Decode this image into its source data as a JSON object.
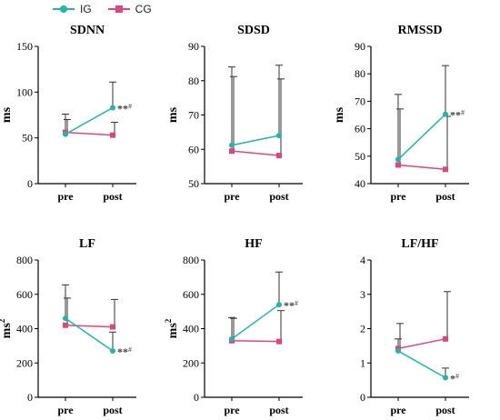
{
  "legend": {
    "ig": {
      "label": "IG",
      "color": "#1fb7a6",
      "marker": "circle"
    },
    "cg": {
      "label": "CG",
      "color": "#e0457b",
      "marker": "square"
    }
  },
  "chart_data": [
    {
      "type": "line",
      "title": "SDNN",
      "ylabel": "ms",
      "categories": [
        "pre",
        "post"
      ],
      "ylim": [
        0,
        150
      ],
      "yticks": [
        0,
        50,
        100,
        150
      ],
      "series": [
        {
          "name": "IG",
          "values": [
            54,
            83
          ],
          "error_upper": [
            76,
            111
          ]
        },
        {
          "name": "CG",
          "values": [
            56,
            53
          ],
          "error_upper": [
            70,
            67
          ]
        }
      ],
      "annotation": "**#"
    },
    {
      "type": "line",
      "title": "SDSD",
      "ylabel": "ms",
      "categories": [
        "pre",
        "post"
      ],
      "ylim": [
        50,
        90
      ],
      "yticks": [
        50,
        60,
        70,
        80,
        90
      ],
      "series": [
        {
          "name": "IG",
          "values": [
            61.2,
            64
          ],
          "error_upper": [
            84,
            84.5
          ]
        },
        {
          "name": "CG",
          "values": [
            59.5,
            58.2
          ],
          "error_upper": [
            81.2,
            80.5
          ]
        }
      ],
      "annotation": ""
    },
    {
      "type": "line",
      "title": "RMSSD",
      "ylabel": "ms",
      "categories": [
        "pre",
        "post"
      ],
      "ylim": [
        40,
        90
      ],
      "yticks": [
        40,
        50,
        60,
        70,
        80,
        90
      ],
      "series": [
        {
          "name": "IG",
          "values": [
            48.8,
            65.3
          ],
          "error_upper": [
            72.5,
            83
          ]
        },
        {
          "name": "CG",
          "values": [
            46.8,
            45.2
          ],
          "error_upper": [
            67.2,
            64.5
          ]
        }
      ],
      "annotation": "**#"
    },
    {
      "type": "line",
      "title": "LF",
      "ylabel": "ms",
      "ylabel_sup": "2",
      "categories": [
        "pre",
        "post"
      ],
      "ylim": [
        0,
        800
      ],
      "yticks": [
        0,
        200,
        400,
        600,
        800
      ],
      "series": [
        {
          "name": "IG",
          "values": [
            460,
            270
          ],
          "error_upper": [
            655,
            380
          ]
        },
        {
          "name": "CG",
          "values": [
            420,
            410
          ],
          "error_upper": [
            578,
            570
          ]
        }
      ],
      "annotation": "**#"
    },
    {
      "type": "line",
      "title": "HF",
      "ylabel": "ms",
      "ylabel_sup": "2",
      "categories": [
        "pre",
        "post"
      ],
      "ylim": [
        0,
        800
      ],
      "yticks": [
        0,
        200,
        400,
        600,
        800
      ],
      "series": [
        {
          "name": "IG",
          "values": [
            340,
            540
          ],
          "error_upper": [
            465,
            730
          ]
        },
        {
          "name": "CG",
          "values": [
            330,
            325
          ],
          "error_upper": [
            460,
            505
          ]
        }
      ],
      "annotation": "**#"
    },
    {
      "type": "line",
      "title": "LF/HF",
      "ylabel": "",
      "categories": [
        "pre",
        "post"
      ],
      "ylim": [
        0,
        4
      ],
      "yticks": [
        0,
        1,
        2,
        3,
        4
      ],
      "series": [
        {
          "name": "IG",
          "values": [
            1.35,
            0.57
          ],
          "error_upper": [
            1.7,
            0.85
          ]
        },
        {
          "name": "CG",
          "values": [
            1.42,
            1.7
          ],
          "error_upper": [
            2.15,
            3.08
          ]
        }
      ],
      "annotation": "*#"
    }
  ]
}
